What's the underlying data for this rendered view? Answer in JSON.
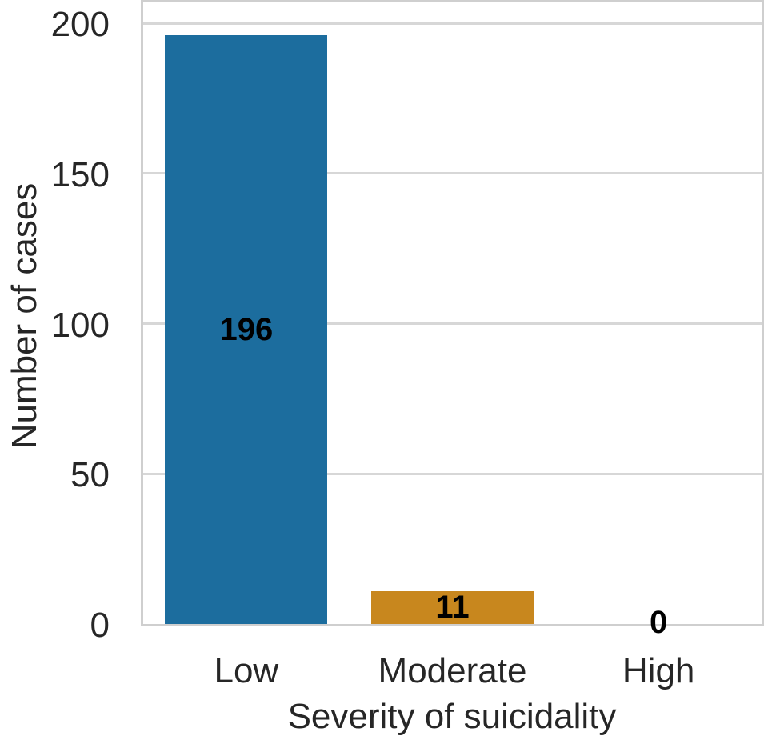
{
  "chart_data": {
    "type": "bar",
    "title": "",
    "xlabel": "Severity of suicidality",
    "ylabel": "Number of cases",
    "categories": [
      "Low",
      "Moderate",
      "High"
    ],
    "values": [
      196,
      11,
      0
    ],
    "value_labels": [
      "196",
      "11",
      "0"
    ],
    "bar_colors": [
      "#1c6d9e",
      "#c8871e",
      null
    ],
    "yticks": [
      0,
      50,
      100,
      150,
      200
    ],
    "ylim": [
      0,
      207
    ],
    "grid": "horizontal",
    "legend": "none",
    "plot_background": "#ffffff",
    "grid_color": "#d7d7d7",
    "spine_color": "#cfcfcf",
    "tick_text_color": "#262626",
    "value_label_color": "#000000"
  }
}
